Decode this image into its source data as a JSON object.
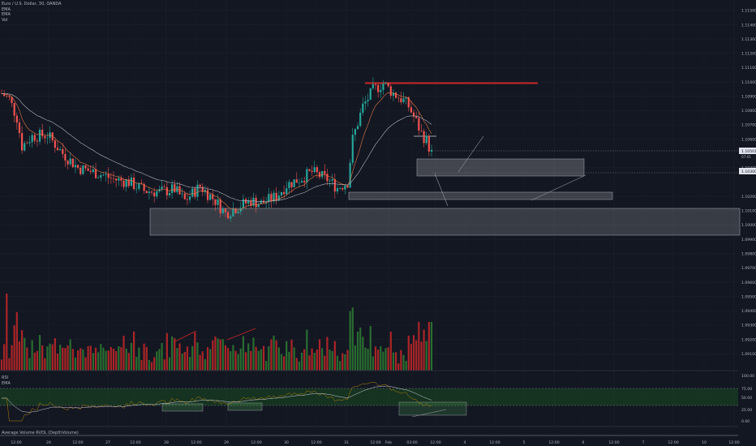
{
  "header": {
    "symbol": "Euro / U.S. Dollar, 30, OANDA",
    "indicators": [
      "EMA",
      "EMA",
      "Vol"
    ]
  },
  "rsi_panel": {
    "labels": [
      "RSI",
      "EMA"
    ],
    "levels": [
      "100.00",
      "75.00",
      "50.00",
      "25.00",
      "0.00"
    ]
  },
  "bottom_panel": {
    "label": "Average Volume RVOL (DepthVolume)"
  },
  "colors": {
    "background": "#131722",
    "up": "#26a69a",
    "down": "#ef5350",
    "volume_up": "#2e7d32",
    "volume_down": "#c62828",
    "resistance": "#c62828",
    "zone": "#ffffff",
    "rsi_band": "#1b5e20"
  },
  "chart_data": [
    {
      "type": "candlestick",
      "x_axis_ticks": [
        "12:00",
        "24",
        "12:00",
        "27",
        "12:00",
        "28",
        "12:00",
        "29",
        "12:00",
        "30",
        "12:00",
        "31",
        "12:00",
        "Feb",
        "03:00",
        "12:00",
        "4",
        "12:00",
        "5",
        "12:00",
        "6",
        "12:00",
        "7",
        "12:00",
        "10",
        "12:00"
      ],
      "y_axis_ticks": [
        "1.11500",
        "1.11400",
        "1.11300",
        "1.11200",
        "1.11100",
        "1.11000",
        "1.10900",
        "1.10800",
        "1.10700",
        "1.10600",
        "1.10400",
        "1.10200",
        "1.10100",
        "1.10000",
        "1.09900",
        "1.09800",
        "1.09700",
        "1.09600",
        "1.09500",
        "1.09400",
        "1.09300",
        "1.09200",
        "1.09100"
      ],
      "price_labels": [
        "1.10501",
        "1.10300"
      ],
      "price_label_time": "07:01",
      "ylim": [
        1.0905,
        1.1155
      ],
      "path_anchors": [
        [
          0,
          1.1092
        ],
        [
          3,
          1.1088
        ],
        [
          6,
          1.1075
        ],
        [
          8,
          1.1055
        ],
        [
          12,
          1.1062
        ],
        [
          18,
          1.1063
        ],
        [
          24,
          1.105
        ],
        [
          30,
          1.104
        ],
        [
          38,
          1.1036
        ],
        [
          44,
          1.1032
        ],
        [
          50,
          1.103
        ],
        [
          56,
          1.1024
        ],
        [
          62,
          1.1023
        ],
        [
          68,
          1.1025
        ],
        [
          72,
          1.1017
        ],
        [
          78,
          1.1027
        ],
        [
          84,
          1.1017
        ],
        [
          88,
          1.1008
        ],
        [
          92,
          1.1012
        ],
        [
          98,
          1.1017
        ],
        [
          102,
          1.1015
        ],
        [
          108,
          1.102
        ],
        [
          112,
          1.1028
        ],
        [
          118,
          1.1033
        ],
        [
          122,
          1.1037
        ],
        [
          128,
          1.1032
        ],
        [
          132,
          1.1026
        ],
        [
          136,
          1.103
        ],
        [
          138,
          1.106
        ],
        [
          142,
          1.1083
        ],
        [
          146,
          1.1094
        ],
        [
          150,
          1.1099
        ],
        [
          154,
          1.1092
        ],
        [
          158,
          1.1087
        ],
        [
          160,
          1.1083
        ],
        [
          163,
          1.1072
        ],
        [
          165,
          1.1064
        ],
        [
          167,
          1.1059
        ],
        [
          169,
          1.105
        ]
      ],
      "candle_count": 170,
      "volume_peak_index": 169
    },
    {
      "type": "line",
      "name": "RSI",
      "ylim": [
        0,
        100
      ],
      "levels": [
        70,
        30
      ]
    }
  ]
}
